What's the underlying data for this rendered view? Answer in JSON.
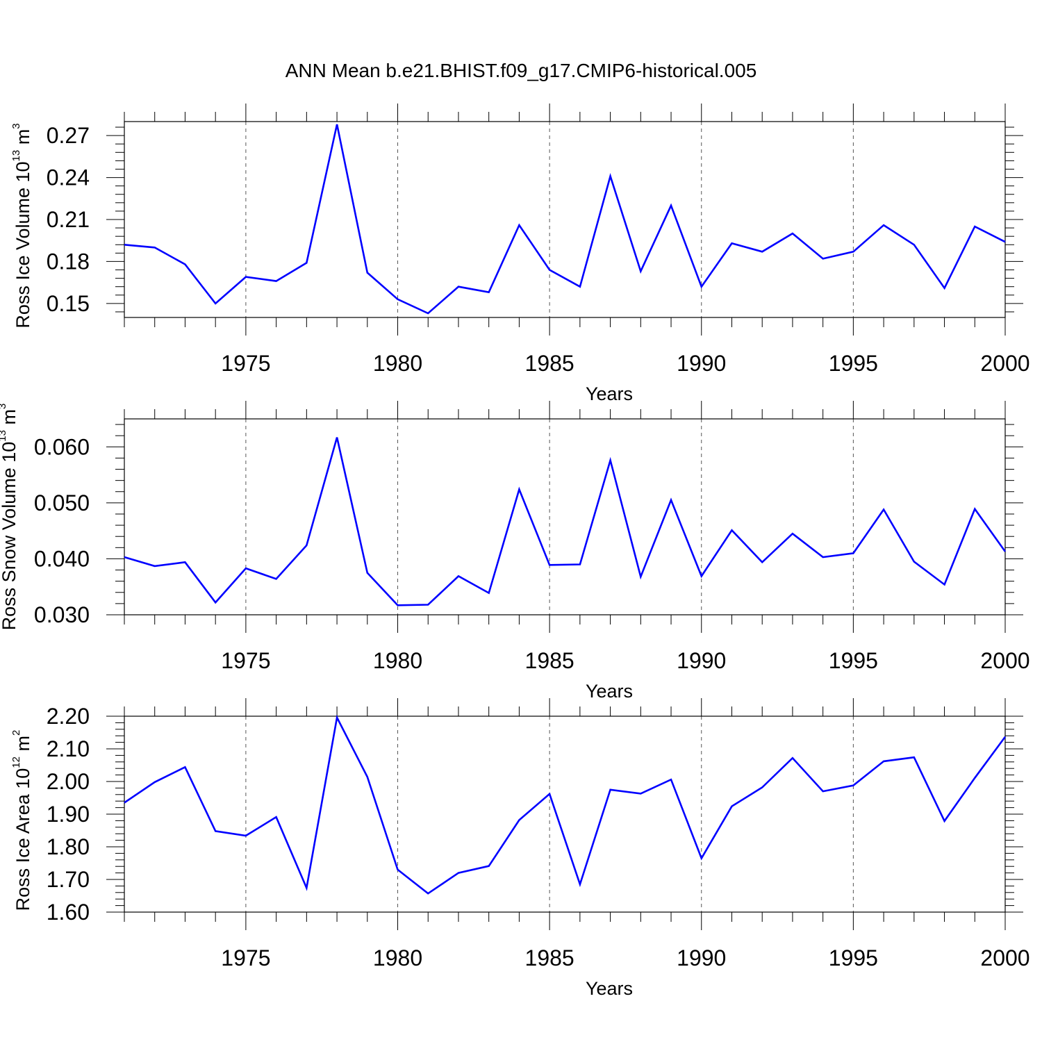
{
  "figure": {
    "title": "ANN Mean b.e21.BHIST.f09_g17.CMIP6-historical.005",
    "line_color": "#0000ff"
  },
  "chart_data": [
    {
      "type": "line",
      "xlabel": "Years",
      "ylabel_main": "Ross Ice Volume 10",
      "ylabel_exp": "13",
      "ylabel_unit": " m",
      "ylabel_unit_exp": "3",
      "xlim": [
        1971,
        2000
      ],
      "ylim": [
        0.14,
        0.28
      ],
      "x_ticks": [
        1975,
        1980,
        1985,
        1990,
        1995,
        2000
      ],
      "x_tick_labels": [
        "1975",
        "1980",
        "1985",
        "1990",
        "1995",
        "2000"
      ],
      "y_ticks": [
        0.15,
        0.18,
        0.21,
        0.24,
        0.27
      ],
      "y_tick_labels": [
        "0.15",
        "0.18",
        "0.21",
        "0.24",
        "0.27"
      ],
      "y_minor_step": 0.006,
      "grid": "vertical dashed at major x ticks",
      "x": [
        1971,
        1972,
        1973,
        1974,
        1975,
        1976,
        1977,
        1978,
        1979,
        1980,
        1981,
        1982,
        1983,
        1984,
        1985,
        1986,
        1987,
        1988,
        1989,
        1990,
        1991,
        1992,
        1993,
        1994,
        1995,
        1996,
        1997,
        1998,
        1999,
        2000
      ],
      "series": [
        {
          "values": [
            0.192,
            0.19,
            0.178,
            0.15,
            0.169,
            0.166,
            0.179,
            0.278,
            0.172,
            0.153,
            0.143,
            0.162,
            0.158,
            0.206,
            0.174,
            0.162,
            0.241,
            0.173,
            0.22,
            0.162,
            0.193,
            0.187,
            0.2,
            0.182,
            0.187,
            0.206,
            0.192,
            0.161,
            0.205,
            0.194
          ]
        }
      ]
    },
    {
      "type": "line",
      "xlabel": "Years",
      "ylabel_main": "Ross Snow Volume 10",
      "ylabel_exp": "13",
      "ylabel_unit": " m",
      "ylabel_unit_exp": "3",
      "xlim": [
        1971,
        2000
      ],
      "ylim": [
        0.03,
        0.065
      ],
      "x_ticks": [
        1975,
        1980,
        1985,
        1990,
        1995,
        2000
      ],
      "x_tick_labels": [
        "1975",
        "1980",
        "1985",
        "1990",
        "1995",
        "2000"
      ],
      "y_ticks": [
        0.03,
        0.04,
        0.05,
        0.06
      ],
      "y_tick_labels": [
        "0.030",
        "0.040",
        "0.050",
        "0.060"
      ],
      "y_minor_step": 0.002,
      "grid": "vertical dashed at major x ticks",
      "x": [
        1971,
        1972,
        1973,
        1974,
        1975,
        1976,
        1977,
        1978,
        1979,
        1980,
        1981,
        1982,
        1983,
        1984,
        1985,
        1986,
        1987,
        1988,
        1989,
        1990,
        1991,
        1992,
        1993,
        1994,
        1995,
        1996,
        1997,
        1998,
        1999,
        2000
      ],
      "series": [
        {
          "values": [
            0.0403,
            0.0387,
            0.0394,
            0.0322,
            0.0383,
            0.0364,
            0.0424,
            0.0617,
            0.0375,
            0.0317,
            0.0318,
            0.0369,
            0.0339,
            0.0524,
            0.0389,
            0.039,
            0.0576,
            0.0368,
            0.0505,
            0.0369,
            0.0451,
            0.0394,
            0.0445,
            0.0403,
            0.041,
            0.0488,
            0.0395,
            0.0354,
            0.0489,
            0.0413
          ]
        }
      ]
    },
    {
      "type": "line",
      "xlabel": "Years",
      "ylabel_main": "Ross Ice Area 10",
      "ylabel_exp": "12",
      "ylabel_unit": " m",
      "ylabel_unit_exp": "2",
      "xlim": [
        1971,
        2000
      ],
      "ylim": [
        1.6,
        2.2
      ],
      "x_ticks": [
        1975,
        1980,
        1985,
        1990,
        1995,
        2000
      ],
      "x_tick_labels": [
        "1975",
        "1980",
        "1985",
        "1990",
        "1995",
        "2000"
      ],
      "y_ticks": [
        1.6,
        1.7,
        1.8,
        1.9,
        2.0,
        2.1,
        2.2
      ],
      "y_tick_labels": [
        "1.60",
        "1.70",
        "1.80",
        "1.90",
        "2.00",
        "2.10",
        "2.20"
      ],
      "y_minor_step": 0.02,
      "grid": "vertical dashed at major x ticks",
      "x": [
        1971,
        1972,
        1973,
        1974,
        1975,
        1976,
        1977,
        1978,
        1979,
        1980,
        1981,
        1982,
        1983,
        1984,
        1985,
        1986,
        1987,
        1988,
        1989,
        1990,
        1991,
        1992,
        1993,
        1994,
        1995,
        1996,
        1997,
        1998,
        1999,
        2000
      ],
      "series": [
        {
          "values": [
            1.935,
            1.998,
            2.044,
            1.848,
            1.834,
            1.891,
            1.674,
            2.196,
            2.014,
            1.73,
            1.657,
            1.72,
            1.741,
            1.882,
            1.962,
            1.685,
            1.975,
            1.963,
            2.006,
            1.765,
            1.924,
            1.982,
            2.072,
            1.97,
            1.988,
            2.062,
            2.074,
            1.879,
            2.011,
            2.137
          ]
        }
      ]
    }
  ]
}
